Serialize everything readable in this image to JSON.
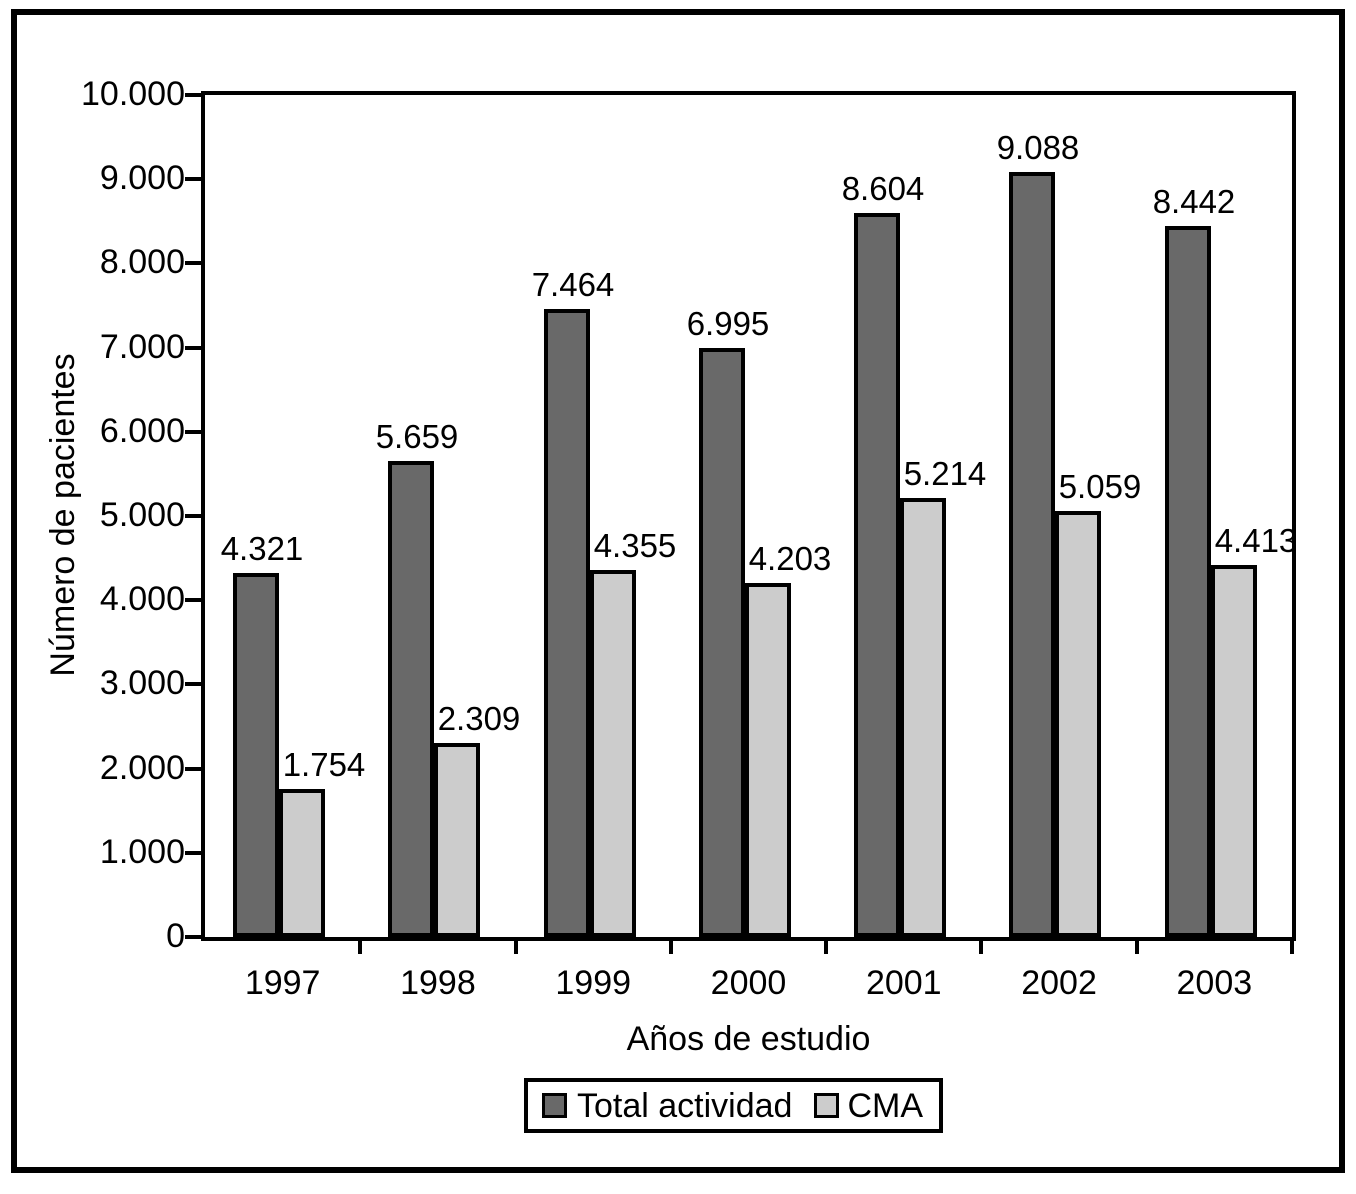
{
  "figure": {
    "background": "#ffffff",
    "border_color": "#000000",
    "text_color": "#000000"
  },
  "chart_data": {
    "type": "bar",
    "title": "",
    "categories": [
      "1997",
      "1998",
      "1999",
      "2000",
      "2001",
      "2002",
      "2003"
    ],
    "series": [
      {
        "name": "Total actividad",
        "color": "#696969",
        "values": [
          4321,
          5659,
          7464,
          6995,
          8604,
          9088,
          8442
        ],
        "labels": [
          "4.321",
          "5.659",
          "7.464",
          "6.995",
          "8.604",
          "9.088",
          "8.442"
        ]
      },
      {
        "name": "CMA",
        "color": "#cccccc",
        "values": [
          1754,
          2309,
          4355,
          4203,
          5214,
          5059,
          4413
        ],
        "labels": [
          "1.754",
          "2.309",
          "4.355",
          "4.203",
          "5.214",
          "5.059",
          "4.413"
        ]
      }
    ],
    "xlabel": "Años de estudio",
    "ylabel": "Número de pacientes",
    "ylim": [
      0,
      10000
    ],
    "ytick_step": 1000,
    "ytick_labels": [
      "0",
      "1.000",
      "2.000",
      "3.000",
      "4.000",
      "5.000",
      "6.000",
      "7.000",
      "8.000",
      "9.000",
      "10.000"
    ],
    "grid": false,
    "bar_edge_color": "#000000",
    "legend_position": "bottom-center"
  }
}
